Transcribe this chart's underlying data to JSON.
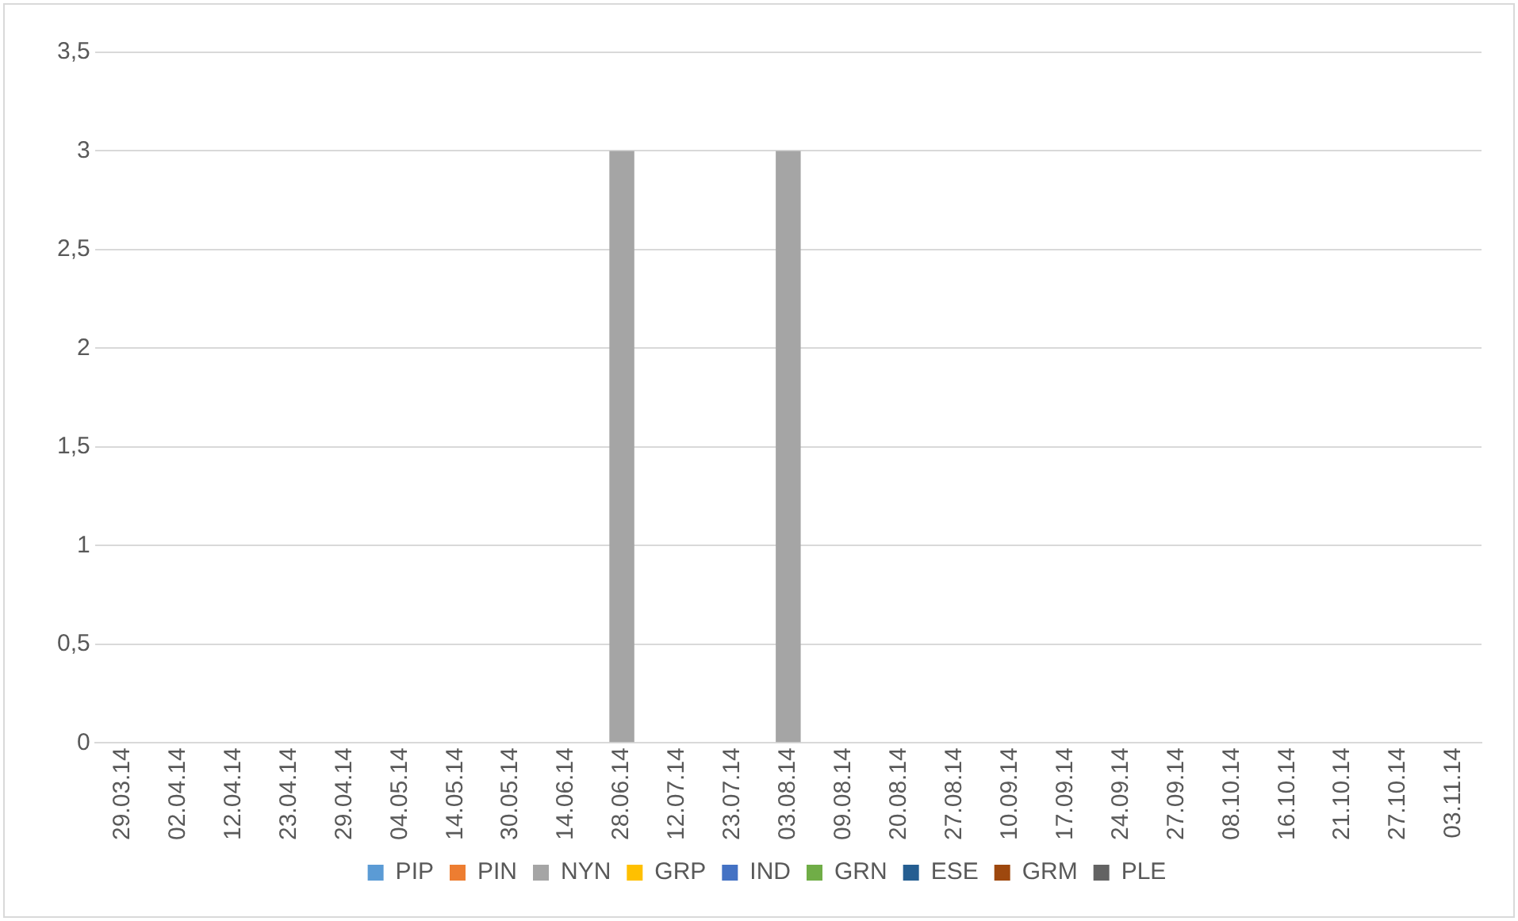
{
  "chart_data": {
    "type": "bar",
    "stacked": true,
    "categories": [
      "29.03.14",
      "02.04.14",
      "12.04.14",
      "23.04.14",
      "29.04.14",
      "04.05.14",
      "14.05.14",
      "30.05.14",
      "14.06.14",
      "28.06.14",
      "12.07.14",
      "23.07.14",
      "03.08.14",
      "09.08.14",
      "20.08.14",
      "27.08.14",
      "10.09.14",
      "17.09.14",
      "24.09.14",
      "27.09.14",
      "08.10.14",
      "16.10.14",
      "21.10.14",
      "27.10.14",
      "03.11.14"
    ],
    "series": [
      {
        "name": "PIP",
        "color": "#5b9bd5",
        "values": [
          0,
          0,
          0,
          0,
          0,
          0,
          0,
          0,
          0,
          0,
          0,
          0,
          0,
          0,
          0,
          0,
          0,
          0,
          0,
          0,
          0,
          0,
          0,
          0,
          0
        ]
      },
      {
        "name": "PIN",
        "color": "#ed7d31",
        "values": [
          0,
          0,
          0,
          0,
          0,
          0,
          0,
          0,
          0,
          0,
          0,
          0,
          0,
          0,
          0,
          0,
          0,
          0,
          0,
          0,
          0,
          0,
          0,
          0,
          0
        ]
      },
      {
        "name": "NYN",
        "color": "#a5a5a5",
        "values": [
          0,
          0,
          0,
          0,
          0,
          0,
          0,
          0,
          0,
          3,
          0,
          0,
          3,
          0,
          0,
          0,
          0,
          0,
          0,
          0,
          0,
          0,
          0,
          0,
          0
        ]
      },
      {
        "name": "GRP",
        "color": "#ffc000",
        "values": [
          0,
          0,
          0,
          0,
          0,
          0,
          0,
          0,
          0,
          0,
          0,
          0,
          0,
          0,
          0,
          0,
          0,
          0,
          0,
          0,
          0,
          0,
          0,
          0,
          0
        ]
      },
      {
        "name": "IND",
        "color": "#4472c4",
        "values": [
          0,
          0,
          0,
          0,
          0,
          0,
          0,
          0,
          0,
          0,
          0,
          0,
          0,
          0,
          0,
          0,
          0,
          0,
          0,
          0,
          0,
          0,
          0,
          0,
          0
        ]
      },
      {
        "name": "GRN",
        "color": "#70ad47",
        "values": [
          0,
          0,
          0,
          0,
          0,
          0,
          0,
          0,
          0,
          0,
          0,
          0,
          0,
          0,
          0,
          0,
          0,
          0,
          0,
          0,
          0,
          0,
          0,
          0,
          0
        ]
      },
      {
        "name": "ESE",
        "color": "#255e91",
        "values": [
          0,
          0,
          0,
          0,
          0,
          0,
          0,
          0,
          0,
          0,
          0,
          0,
          0,
          0,
          0,
          0,
          0,
          0,
          0,
          0,
          0,
          0,
          0,
          0,
          0
        ]
      },
      {
        "name": "GRM",
        "color": "#9e480e",
        "values": [
          0,
          0,
          0,
          0,
          0,
          0,
          0,
          0,
          0,
          0,
          0,
          0,
          0,
          0,
          0,
          0,
          0,
          0,
          0,
          0,
          0,
          0,
          0,
          0,
          0
        ]
      },
      {
        "name": "PLE",
        "color": "#636363",
        "values": [
          0,
          0,
          0,
          0,
          0,
          0,
          0,
          0,
          0,
          0,
          0,
          0,
          0,
          0,
          0,
          0,
          0,
          0,
          0,
          0,
          0,
          0,
          0,
          0,
          0
        ]
      }
    ],
    "ylim": [
      0,
      3.5
    ],
    "yticks": [
      0,
      {
        "value": 0.5,
        "label": "0,5"
      },
      1,
      {
        "value": 1.5,
        "label": "1,5"
      },
      2,
      {
        "value": 2.5,
        "label": "2,5"
      },
      3,
      {
        "value": 3.5,
        "label": "3,5"
      }
    ],
    "grid": "y",
    "legend": "bottom"
  }
}
